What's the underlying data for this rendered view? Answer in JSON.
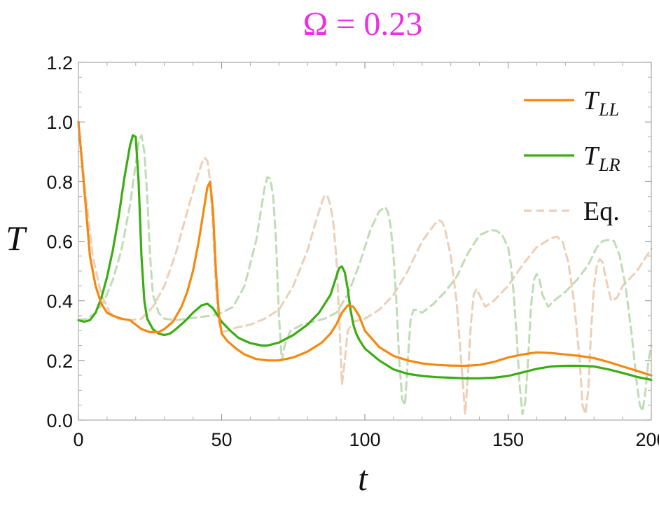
{
  "chart_data": {
    "type": "line",
    "title": "Ω = 0.23",
    "xlabel": "t",
    "ylabel": "T",
    "xlim": [
      0,
      200
    ],
    "ylim": [
      0,
      1.2
    ],
    "xticks": [
      "0",
      "50",
      "100",
      "150",
      "200"
    ],
    "yticks": [
      "0.0",
      "0.2",
      "0.4",
      "0.6",
      "0.8",
      "1.0",
      "1.2"
    ],
    "xtick_values": [
      0,
      50,
      100,
      150,
      200
    ],
    "ytick_values": [
      0,
      0.2,
      0.4,
      0.6,
      0.8,
      1.0,
      1.2
    ],
    "grid": false,
    "legend_position": "top-right",
    "colors": {
      "title": "#ee2ee5",
      "T_LL": "#f5880f",
      "T_LR": "#3aad12",
      "eq_LL": "#eccfb8",
      "eq_LR": "#bfdcb5"
    },
    "series": [
      {
        "name": "T_LL",
        "legend_main": "T",
        "legend_sub": "LL",
        "style": "solid",
        "x": [
          0,
          2,
          4,
          6,
          8,
          10,
          12,
          15,
          18,
          20,
          22,
          25,
          28,
          30,
          33,
          36,
          38,
          40,
          42,
          44,
          45,
          46,
          47,
          48,
          49,
          50,
          52,
          55,
          58,
          62,
          66,
          70,
          75,
          80,
          85,
          88,
          90,
          92,
          94,
          96,
          98,
          100,
          105,
          110,
          115,
          120,
          125,
          130,
          135,
          140,
          145,
          150,
          155,
          160,
          165,
          170,
          175,
          180,
          185,
          190,
          195,
          200
        ],
        "y": [
          1.0,
          0.78,
          0.55,
          0.45,
          0.39,
          0.36,
          0.35,
          0.34,
          0.335,
          0.32,
          0.305,
          0.295,
          0.295,
          0.305,
          0.33,
          0.38,
          0.43,
          0.5,
          0.6,
          0.72,
          0.78,
          0.8,
          0.7,
          0.5,
          0.36,
          0.29,
          0.265,
          0.24,
          0.22,
          0.205,
          0.2,
          0.2,
          0.21,
          0.23,
          0.26,
          0.29,
          0.32,
          0.36,
          0.385,
          0.38,
          0.35,
          0.3,
          0.245,
          0.215,
          0.2,
          0.19,
          0.185,
          0.183,
          0.182,
          0.185,
          0.195,
          0.21,
          0.22,
          0.227,
          0.225,
          0.22,
          0.215,
          0.208,
          0.195,
          0.18,
          0.165,
          0.15
        ]
      },
      {
        "name": "T_LR",
        "legend_main": "T",
        "legend_sub": "LR",
        "style": "solid",
        "x": [
          0,
          2,
          4,
          6,
          8,
          10,
          12,
          14,
          16,
          18,
          19,
          20,
          21,
          22,
          23,
          24,
          26,
          28,
          30,
          32,
          34,
          37,
          40,
          43,
          45,
          47,
          50,
          53,
          56,
          60,
          64,
          66,
          70,
          75,
          80,
          84,
          88,
          90,
          91,
          92,
          93,
          94,
          95,
          96,
          97,
          98,
          100,
          105,
          110,
          115,
          120,
          125,
          130,
          135,
          140,
          145,
          150,
          155,
          160,
          165,
          170,
          175,
          180,
          185,
          190,
          195,
          200
        ],
        "y": [
          0.335,
          0.33,
          0.335,
          0.36,
          0.41,
          0.48,
          0.57,
          0.68,
          0.81,
          0.92,
          0.955,
          0.95,
          0.8,
          0.55,
          0.4,
          0.34,
          0.305,
          0.29,
          0.285,
          0.29,
          0.305,
          0.33,
          0.36,
          0.385,
          0.39,
          0.375,
          0.33,
          0.3,
          0.275,
          0.258,
          0.25,
          0.25,
          0.26,
          0.285,
          0.32,
          0.36,
          0.42,
          0.48,
          0.51,
          0.515,
          0.495,
          0.44,
          0.37,
          0.32,
          0.29,
          0.27,
          0.24,
          0.2,
          0.17,
          0.155,
          0.148,
          0.144,
          0.142,
          0.14,
          0.14,
          0.142,
          0.148,
          0.16,
          0.172,
          0.18,
          0.182,
          0.182,
          0.18,
          0.17,
          0.158,
          0.145,
          0.135
        ]
      },
      {
        "name": "Eq.",
        "legend_main": "Eq.",
        "style": "dashed",
        "color_key": "eq_LL",
        "x": [
          0,
          2,
          5,
          8,
          11,
          14,
          18,
          22,
          26,
          30,
          34,
          38,
          41,
          43,
          44,
          45,
          46,
          47,
          48,
          49,
          50,
          52,
          55,
          60,
          65,
          70,
          75,
          80,
          83,
          85,
          86,
          87,
          88,
          89,
          90,
          91,
          92,
          93,
          94,
          96,
          100,
          105,
          110,
          115,
          120,
          125,
          126,
          127,
          128,
          130,
          132,
          134,
          135,
          136,
          137,
          138,
          139,
          140,
          142,
          145,
          150,
          155,
          160,
          165,
          167,
          169,
          171,
          173,
          175,
          176,
          177,
          178,
          179,
          180,
          181,
          182,
          183,
          184,
          186,
          188,
          190,
          195,
          200
        ],
        "y": [
          1.0,
          0.8,
          0.55,
          0.42,
          0.36,
          0.34,
          0.335,
          0.34,
          0.38,
          0.45,
          0.56,
          0.7,
          0.8,
          0.86,
          0.88,
          0.87,
          0.8,
          0.65,
          0.45,
          0.33,
          0.295,
          0.3,
          0.31,
          0.32,
          0.34,
          0.37,
          0.45,
          0.57,
          0.67,
          0.73,
          0.755,
          0.75,
          0.72,
          0.66,
          0.55,
          0.35,
          0.12,
          0.2,
          0.3,
          0.33,
          0.34,
          0.37,
          0.42,
          0.5,
          0.6,
          0.665,
          0.67,
          0.665,
          0.64,
          0.55,
          0.4,
          0.15,
          0.02,
          0.15,
          0.32,
          0.42,
          0.44,
          0.42,
          0.38,
          0.4,
          0.45,
          0.52,
          0.58,
          0.61,
          0.615,
          0.6,
          0.53,
          0.4,
          0.2,
          0.05,
          0.02,
          0.1,
          0.3,
          0.45,
          0.52,
          0.54,
          0.53,
          0.48,
          0.4,
          0.41,
          0.45,
          0.5,
          0.575
        ]
      },
      {
        "legend_main": "",
        "style": "dashed",
        "color_key": "eq_LR",
        "x": [
          0,
          3,
          6,
          9,
          12,
          15,
          18,
          20,
          21,
          22,
          23,
          24,
          25,
          26,
          28,
          30,
          34,
          38,
          42,
          46,
          50,
          54,
          58,
          62,
          64,
          65,
          66,
          67,
          68,
          69,
          70,
          71,
          72,
          74,
          78,
          82,
          86,
          90,
          94,
          98,
          102,
          105,
          107,
          108,
          109,
          110,
          111,
          112,
          113,
          114,
          115,
          116,
          117,
          118,
          120,
          124,
          128,
          132,
          136,
          140,
          144,
          146,
          148,
          150,
          151,
          152,
          153,
          154,
          155,
          156,
          157,
          158,
          159,
          160,
          161,
          162,
          164,
          166,
          170,
          174,
          178,
          181,
          183,
          185,
          187,
          189,
          191,
          193,
          195,
          196,
          197,
          198,
          199,
          200
        ],
        "y": [
          0.335,
          0.34,
          0.36,
          0.4,
          0.47,
          0.57,
          0.72,
          0.86,
          0.93,
          0.955,
          0.9,
          0.75,
          0.55,
          0.42,
          0.36,
          0.34,
          0.335,
          0.34,
          0.345,
          0.35,
          0.36,
          0.38,
          0.45,
          0.6,
          0.72,
          0.78,
          0.815,
          0.81,
          0.75,
          0.6,
          0.35,
          0.2,
          0.25,
          0.3,
          0.32,
          0.33,
          0.34,
          0.36,
          0.42,
          0.52,
          0.64,
          0.7,
          0.715,
          0.7,
          0.65,
          0.55,
          0.4,
          0.2,
          0.07,
          0.05,
          0.2,
          0.34,
          0.37,
          0.37,
          0.36,
          0.39,
          0.43,
          0.48,
          0.56,
          0.62,
          0.638,
          0.635,
          0.62,
          0.58,
          0.52,
          0.42,
          0.28,
          0.12,
          0.02,
          0.06,
          0.2,
          0.38,
          0.47,
          0.49,
          0.47,
          0.42,
          0.38,
          0.4,
          0.43,
          0.47,
          0.52,
          0.58,
          0.6,
          0.605,
          0.6,
          0.55,
          0.45,
          0.3,
          0.12,
          0.05,
          0.03,
          0.1,
          0.2,
          0.25
        ]
      }
    ]
  }
}
